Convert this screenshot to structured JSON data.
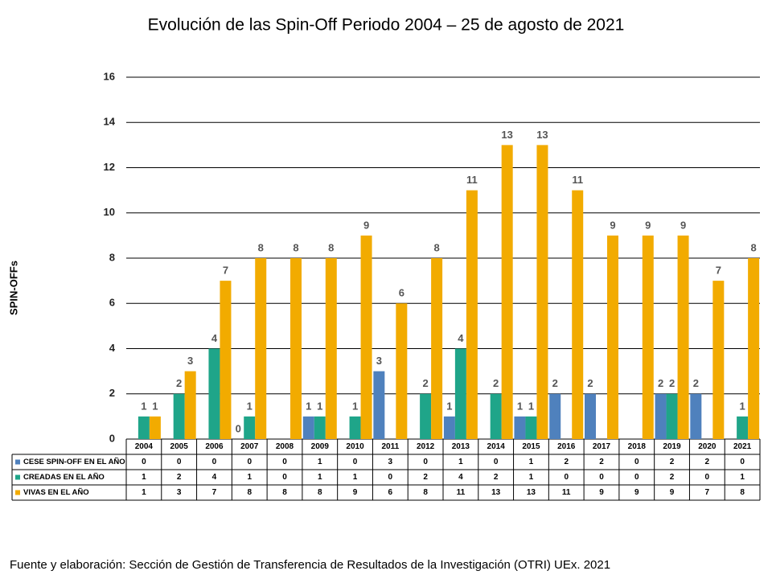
{
  "chart_data": {
    "type": "bar",
    "title": "Evolución de las Spin-Off Periodo 2004 – 25 de agosto de 2021",
    "y_label": "SPIN-OFFs",
    "source": "Fuente y elaboración: Sección de Gestión de Transferencia de Resultados de la Investigación (OTRI) UEx. 2021",
    "categories": [
      "2004",
      "2005",
      "2006",
      "2007",
      "2008",
      "2009",
      "2010",
      "2011",
      "2012",
      "2013",
      "2014",
      "2015",
      "2016",
      "2017",
      "2018",
      "2019",
      "2020",
      "2021"
    ],
    "series": [
      {
        "name": "CESE SPIN-OFF EN EL AÑO",
        "color": "#4f81bd",
        "values": [
          0,
          0,
          0,
          0,
          0,
          1,
          0,
          3,
          0,
          1,
          0,
          1,
          2,
          2,
          0,
          2,
          2,
          0
        ]
      },
      {
        "name": "CREADAS EN EL AÑO",
        "color": "#1fa589",
        "values": [
          1,
          2,
          4,
          1,
          0,
          1,
          1,
          0,
          2,
          4,
          2,
          1,
          0,
          0,
          0,
          2,
          0,
          1
        ]
      },
      {
        "name": "VIVAS EN EL AÑO",
        "color": "#f2ab00",
        "values": [
          1,
          3,
          7,
          8,
          8,
          8,
          9,
          6,
          8,
          11,
          13,
          13,
          11,
          9,
          9,
          9,
          7,
          8
        ]
      }
    ],
    "ylim": [
      0,
      16
    ],
    "yticks": [
      0,
      2,
      4,
      6,
      8,
      10,
      12,
      14,
      16
    ],
    "grid": true
  }
}
